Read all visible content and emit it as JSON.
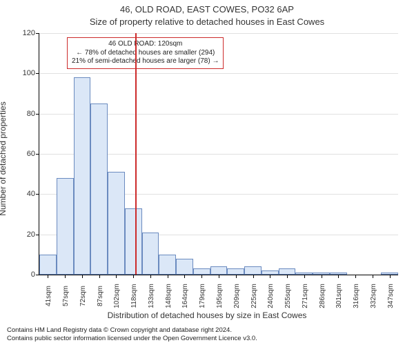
{
  "header": {
    "address_line": "46, OLD ROAD, EAST COWES, PO32 6AP",
    "subtitle": "Size of property relative to detached houses in East Cowes"
  },
  "y_axis": {
    "label": "Number of detached properties",
    "min": 0,
    "max": 120,
    "tick_step": 20,
    "ticks": [
      0,
      20,
      40,
      60,
      80,
      100,
      120
    ],
    "grid_color": "#e0e0e0"
  },
  "x_axis": {
    "label": "Distribution of detached houses by size in East Cowes",
    "categories": [
      "41sqm",
      "57sqm",
      "72sqm",
      "87sqm",
      "102sqm",
      "118sqm",
      "133sqm",
      "148sqm",
      "164sqm",
      "179sqm",
      "195sqm",
      "209sqm",
      "225sqm",
      "240sqm",
      "255sqm",
      "271sqm",
      "286sqm",
      "301sqm",
      "316sqm",
      "332sqm",
      "347sqm"
    ]
  },
  "bars": {
    "values": [
      10,
      48,
      98,
      85,
      51,
      33,
      21,
      10,
      8,
      3,
      4,
      3,
      4,
      2,
      3,
      1,
      1,
      1,
      0,
      0,
      1
    ],
    "fill_color": "#dbe7f7",
    "border_color": "#6a8abf",
    "bar_gap_frac": 0.0
  },
  "reference": {
    "value_sqm": 120,
    "line_color": "#cc2a2a",
    "info_lines": [
      "46 OLD ROAD: 120sqm",
      "← 78% of detached houses are smaller (294)",
      "21% of semi-detached houses are larger (78) →"
    ],
    "box_border_color": "#cc2a2a"
  },
  "copyright": {
    "line1": "Contains HM Land Registry data © Crown copyright and database right 2024.",
    "line2": "Contains public sector information licensed under the Open Government Licence v3.0."
  },
  "style": {
    "background_color": "#ffffff",
    "axis_color": "#000000",
    "font_family": "Arial"
  }
}
